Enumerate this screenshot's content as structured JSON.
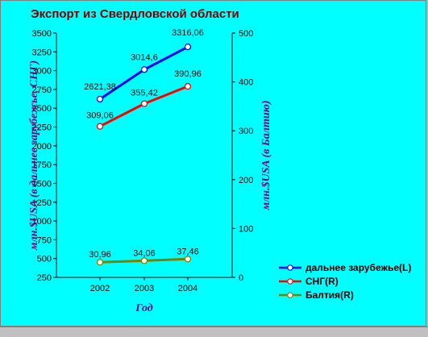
{
  "chart_data": {
    "type": "line",
    "title": "Экспорт из Свердловской области",
    "xlabel": "Год",
    "ylabel_left": "млн.$USA (в дальнее зарубежье, СНГ)",
    "ylabel_right": "млн.$USA (в Балтию)",
    "categories": [
      "2002",
      "2003",
      "2004"
    ],
    "ylim_left": [
      250,
      3500
    ],
    "yticks_left": [
      "250",
      "500",
      "750",
      "1000",
      "1250",
      "1500",
      "1750",
      "2000",
      "2250",
      "2500",
      "2750",
      "3000",
      "3250",
      "3500"
    ],
    "ylim_right": [
      0,
      500
    ],
    "yticks_right": [
      "0",
      "100",
      "200",
      "300",
      "400",
      "500"
    ],
    "grid": false,
    "legend_position": "bottom-right",
    "series": [
      {
        "name": "дальнее зарубежье(L)",
        "axis": "left",
        "color": "#0000FF",
        "values": [
          2621.38,
          3014.6,
          3316.06
        ],
        "labels": [
          "2621,38",
          "3014,6",
          "3316,06"
        ]
      },
      {
        "name": "СНГ(R)",
        "axis": "right",
        "color": "#FF0000",
        "values": [
          309.06,
          355.42,
          390.96
        ],
        "labels": [
          "309,06",
          "355,42",
          "390,96"
        ]
      },
      {
        "name": "Балтия(R)",
        "axis": "right",
        "color": "#808000",
        "values": [
          30.96,
          34.06,
          37.46
        ],
        "labels": [
          "30,96",
          "34,06",
          "37,46"
        ]
      }
    ]
  }
}
